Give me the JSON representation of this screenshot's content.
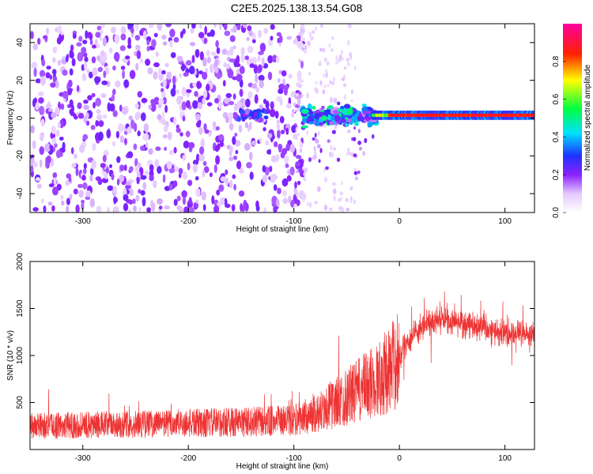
{
  "figure": {
    "title": "C2E5.2025.138.13.54.G08"
  },
  "colors": {
    "background": "#ffffff",
    "axis": "#000000",
    "snr_line": "#ee3333"
  },
  "chart_data": [
    {
      "type": "heatmap",
      "xlabel": "Height of straight line (km)",
      "ylabel": "Frequency (Hz)",
      "xlim": [
        -350,
        128
      ],
      "ylim": [
        -50,
        50
      ],
      "xticks": [
        -300,
        -200,
        -100,
        0,
        100
      ],
      "yticks": [
        -40,
        -20,
        0,
        20,
        40
      ],
      "grid": false,
      "colorbar": {
        "label": "Normalized spectral amplitude",
        "range": [
          0,
          1
        ],
        "ticks": [
          0.0,
          0.2,
          0.4,
          0.6,
          0.8
        ],
        "colormap": "rainbow (white to violet to blue to cyan to green to yellow to red to magenta)"
      },
      "regions": [
        {
          "x_range": [
            -350,
            -90
          ],
          "freq_range": [
            -50,
            50
          ],
          "amplitude": [
            0.0,
            0.15
          ]
        },
        {
          "x_range": [
            -150,
            -125
          ],
          "freq_range": [
            -3,
            5
          ],
          "amplitude": [
            0.15,
            0.3
          ]
        },
        {
          "x_range": [
            -90,
            -25
          ],
          "freq_range": [
            -10,
            10
          ],
          "amplitude": [
            0.15,
            0.5
          ]
        },
        {
          "x_range": [
            -25,
            128
          ],
          "freq_range": [
            0,
            4
          ],
          "amplitude": [
            0.8,
            0.95
          ]
        }
      ]
    },
    {
      "type": "line",
      "xlabel": "Height of straight line (km)",
      "ylabel": "SNR (10 * v/v)",
      "xlim": [
        -350,
        128
      ],
      "ylim": [
        0,
        2000
      ],
      "xticks": [
        -300,
        -200,
        -100,
        0,
        100
      ],
      "yticks": [
        500,
        1000,
        1500,
        2000
      ],
      "grid": false,
      "series": [
        {
          "x": [
            -350,
            -300,
            -250,
            -200,
            -150,
            -100,
            -80,
            -60,
            -40,
            -20,
            -10,
            -5,
            0,
            20,
            40,
            60,
            80,
            100,
            128
          ],
          "y": [
            250,
            260,
            270,
            280,
            290,
            310,
            380,
            500,
            620,
            750,
            850,
            900,
            1050,
            1300,
            1380,
            1350,
            1300,
            1250,
            1200
          ]
        }
      ]
    }
  ]
}
